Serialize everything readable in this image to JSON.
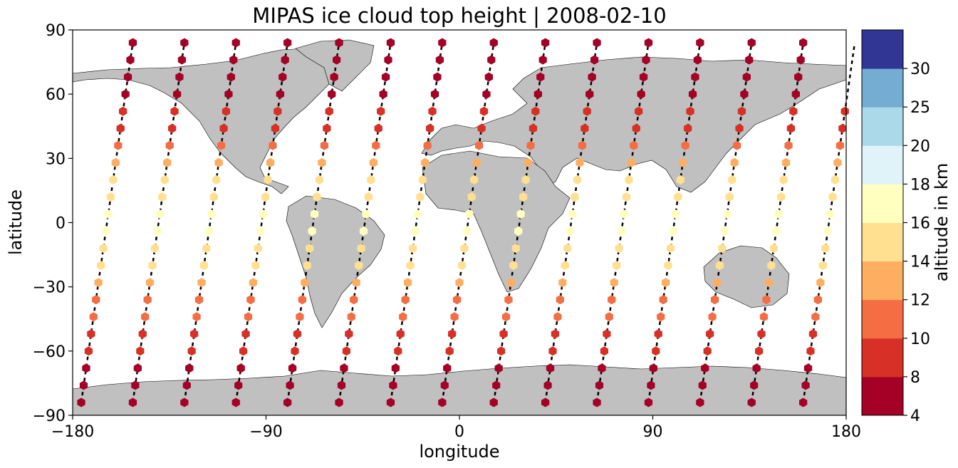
{
  "chart_data": {
    "type": "scatter",
    "title": "MIPAS ice cloud top height | 2008-02-10",
    "xlabel": "longitude",
    "ylabel": "latitude",
    "xlim": [
      -180,
      180
    ],
    "ylim": [
      -90,
      90
    ],
    "xticks": [
      -180,
      -90,
      0,
      90,
      180
    ],
    "xtick_labels": [
      "−180",
      "−90",
      "0",
      "90",
      "180"
    ],
    "yticks": [
      -90,
      -60,
      -30,
      0,
      30,
      60,
      90
    ],
    "ytick_labels": [
      "−90",
      "−60",
      "−30",
      "0",
      "30",
      "60",
      "90"
    ],
    "grid": false,
    "background": "world map with land in grey, oceans white",
    "land_color": "#c0c0c0",
    "track_style": "black dashed satellite orbit tracks",
    "colorbar": {
      "label": "altitude in km",
      "bounds": [
        4,
        8,
        10,
        12,
        14,
        16,
        18,
        20,
        25,
        30
      ],
      "tick_labels": [
        "4",
        "8",
        "10",
        "12",
        "14",
        "16",
        "18",
        "20",
        "25",
        "30"
      ],
      "colors": [
        "#a50026",
        "#d73027",
        "#f46d43",
        "#fdae61",
        "#fee090",
        "#ffffbf",
        "#e0f3f8",
        "#abd9e9",
        "#74add1",
        "#313695"
      ]
    },
    "orbits": [
      {
        "lon_start": -176,
        "lon_end": -152
      },
      {
        "lon_start": -152,
        "lon_end": -128
      },
      {
        "lon_start": -128,
        "lon_end": -104
      },
      {
        "lon_start": -104,
        "lon_end": -80
      },
      {
        "lon_start": -80,
        "lon_end": -56
      },
      {
        "lon_start": -56,
        "lon_end": -32
      },
      {
        "lon_start": -32,
        "lon_end": -8
      },
      {
        "lon_start": -8,
        "lon_end": 16
      },
      {
        "lon_start": 16,
        "lon_end": 40
      },
      {
        "lon_start": 40,
        "lon_end": 64
      },
      {
        "lon_start": 64,
        "lon_end": 88
      },
      {
        "lon_start": 88,
        "lon_end": 112
      },
      {
        "lon_start": 112,
        "lon_end": 136
      },
      {
        "lon_start": 136,
        "lon_end": 160
      },
      {
        "lon_start": 160,
        "lon_end": 184
      }
    ],
    "altitude_profile_km": [
      {
        "lat": -84,
        "alt": 6
      },
      {
        "lat": -76,
        "alt": 6.5
      },
      {
        "lat": -68,
        "alt": 7
      },
      {
        "lat": -60,
        "alt": 8.5
      },
      {
        "lat": -52,
        "alt": 9
      },
      {
        "lat": -44,
        "alt": 10
      },
      {
        "lat": -36,
        "alt": 11
      },
      {
        "lat": -28,
        "alt": 12.5
      },
      {
        "lat": -20,
        "alt": 14
      },
      {
        "lat": -12,
        "alt": 15.5
      },
      {
        "lat": -4,
        "alt": 16.5
      },
      {
        "lat": 4,
        "alt": 16.5
      },
      {
        "lat": 12,
        "alt": 15.5
      },
      {
        "lat": 20,
        "alt": 14
      },
      {
        "lat": 28,
        "alt": 12
      },
      {
        "lat": 36,
        "alt": 10.5
      },
      {
        "lat": 44,
        "alt": 9
      },
      {
        "lat": 52,
        "alt": 8
      },
      {
        "lat": 60,
        "alt": 7
      },
      {
        "lat": 68,
        "alt": 6.5
      },
      {
        "lat": 76,
        "alt": 6
      },
      {
        "lat": 84,
        "alt": 5.5
      }
    ]
  }
}
